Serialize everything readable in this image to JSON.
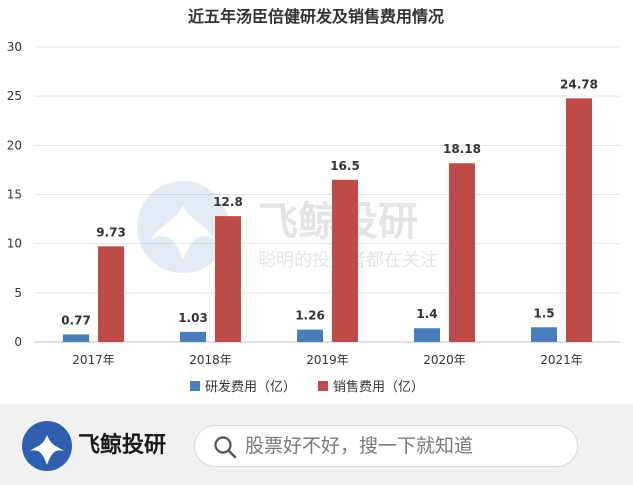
{
  "chart_data": {
    "type": "bar",
    "title": "近五年汤臣倍健研发及销售费用情况",
    "categories": [
      "2017年",
      "2018年",
      "2019年",
      "2020年",
      "2021年"
    ],
    "series": [
      {
        "name": "研发费用（亿）",
        "color": "#4a7ebb",
        "values": [
          0.77,
          1.03,
          1.26,
          1.4,
          1.5
        ],
        "labels": [
          "0.77",
          "1.03",
          "1.26",
          "1.4",
          "1.5"
        ]
      },
      {
        "name": "销售费用（亿）",
        "color": "#be4b48",
        "values": [
          9.73,
          12.8,
          16.5,
          18.18,
          24.78
        ],
        "labels": [
          "9.73",
          "12.8",
          "16.5",
          "18.18",
          "24.78"
        ]
      }
    ],
    "yticks": [
      "0",
      "5",
      "10",
      "15",
      "20",
      "25",
      "30"
    ],
    "ylim": [
      0,
      30
    ],
    "grid": true,
    "legend_position": "bottom"
  },
  "watermark": {
    "brand": "飞鲸投研",
    "slogan": "聪明的投资者都在关注"
  },
  "footer": {
    "brand": "飞鲸投研",
    "search_placeholder": "股票好不好，搜一下就知道",
    "search_icon": "search-icon",
    "logo_icon": "whale-logo-icon",
    "background": "#f1f1f1"
  }
}
